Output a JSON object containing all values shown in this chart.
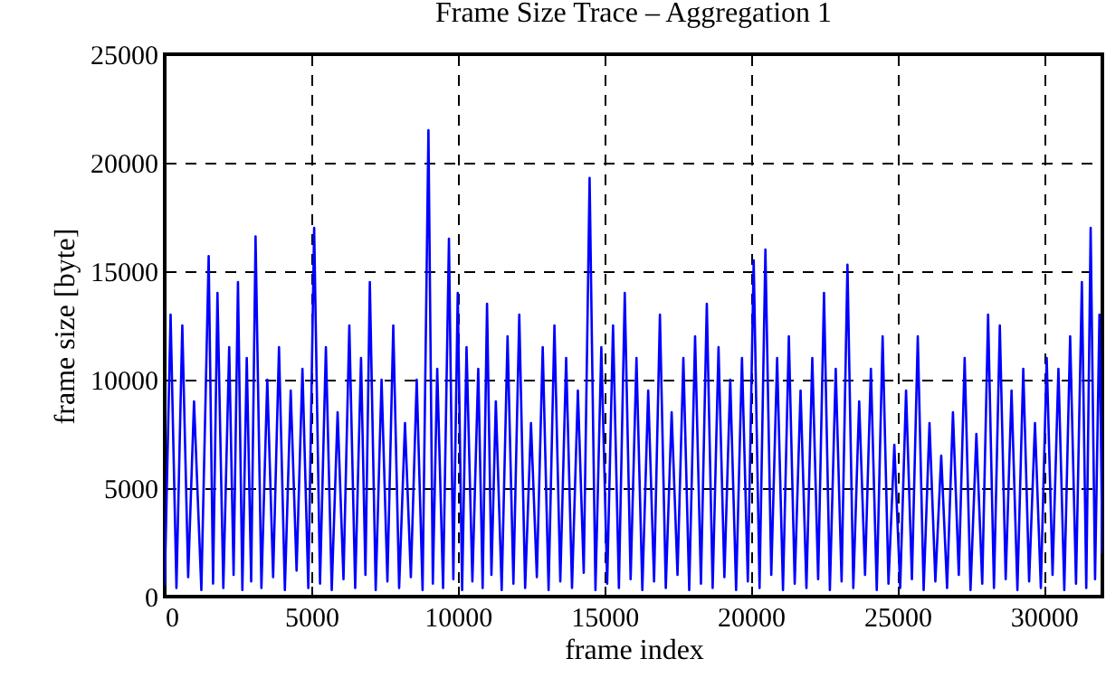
{
  "chart_data": {
    "type": "line",
    "title": "Frame Size Trace – Aggregation 1",
    "xlabel": "frame index",
    "ylabel": "frame size [byte]",
    "xlim": [
      0,
      32000
    ],
    "xticks": [
      0,
      5000,
      10000,
      15000,
      20000,
      25000,
      30000
    ],
    "ylim": [
      0,
      25000
    ],
    "yticks": [
      0,
      5000,
      10000,
      15000,
      20000,
      25000
    ],
    "grid": true,
    "marker": "none",
    "line_style": "solid",
    "series": [
      {
        "color": "#0000ff",
        "x": [
          0,
          200,
          400,
          600,
          800,
          1000,
          1250,
          1500,
          1650,
          1800,
          2000,
          2200,
          2350,
          2500,
          2650,
          2800,
          2950,
          3100,
          3300,
          3500,
          3700,
          3900,
          4100,
          4300,
          4500,
          4700,
          4900,
          5100,
          5300,
          5500,
          5700,
          5900,
          6100,
          6300,
          6500,
          6700,
          6850,
          7000,
          7200,
          7400,
          7600,
          7800,
          8000,
          8200,
          8400,
          8600,
          8800,
          9000,
          9150,
          9300,
          9500,
          9700,
          9850,
          10000,
          10150,
          10300,
          10500,
          10700,
          10850,
          11000,
          11150,
          11300,
          11500,
          11700,
          11900,
          12100,
          12300,
          12500,
          12700,
          12900,
          13100,
          13300,
          13500,
          13700,
          13900,
          14100,
          14300,
          14500,
          14700,
          14900,
          15100,
          15300,
          15500,
          15700,
          15900,
          16100,
          16300,
          16500,
          16700,
          16900,
          17100,
          17300,
          17500,
          17700,
          17900,
          18100,
          18300,
          18500,
          18700,
          18900,
          19100,
          19300,
          19500,
          19700,
          19900,
          20100,
          20300,
          20500,
          20700,
          20900,
          21100,
          21300,
          21500,
          21700,
          21900,
          22100,
          22300,
          22500,
          22700,
          22900,
          23100,
          23300,
          23500,
          23700,
          23900,
          24100,
          24300,
          24500,
          24700,
          24900,
          25100,
          25300,
          25500,
          25700,
          25900,
          26100,
          26300,
          26500,
          26700,
          26900,
          27100,
          27300,
          27500,
          27700,
          27900,
          28100,
          28300,
          28500,
          28700,
          28900,
          29100,
          29300,
          29500,
          29700,
          29900,
          30100,
          30300,
          30500,
          30700,
          30900,
          31100,
          31300,
          31450,
          31600,
          31750,
          31900,
          32000
        ],
        "values": [
          500,
          13000,
          400,
          12500,
          900,
          9000,
          300,
          15700,
          600,
          14000,
          400,
          11500,
          1000,
          14500,
          300,
          11000,
          700,
          16600,
          400,
          10000,
          900,
          11500,
          300,
          9500,
          1200,
          10500,
          400,
          17000,
          600,
          11500,
          300,
          8500,
          800,
          12500,
          400,
          11000,
          1000,
          14500,
          300,
          10000,
          700,
          12500,
          400,
          8000,
          900,
          10000,
          300,
          21500,
          600,
          10500,
          400,
          16500,
          800,
          14000,
          300,
          11500,
          700,
          10500,
          400,
          13500,
          1000,
          9000,
          300,
          12000,
          600,
          13000,
          400,
          8000,
          900,
          11500,
          300,
          12500,
          700,
          11000,
          400,
          9500,
          1100,
          19300,
          300,
          11500,
          600,
          12500,
          400,
          14000,
          800,
          11000,
          300,
          9500,
          700,
          13000,
          400,
          8500,
          1000,
          11000,
          300,
          12000,
          600,
          13500,
          400,
          11500,
          900,
          10000,
          300,
          11000,
          700,
          15500,
          400,
          16000,
          1000,
          11000,
          300,
          12000,
          600,
          9500,
          400,
          11000,
          800,
          14000,
          300,
          10500,
          700,
          15300,
          400,
          9000,
          1000,
          10500,
          300,
          12000,
          600,
          7000,
          400,
          9500,
          800,
          12000,
          300,
          8000,
          700,
          6500,
          400,
          8500,
          1000,
          11000,
          300,
          7500,
          600,
          13000,
          400,
          12500,
          800,
          9500,
          300,
          10500,
          700,
          8000,
          400,
          11000,
          1000,
          10500,
          300,
          12000,
          600,
          14500,
          400,
          17000,
          800,
          13000,
          2000
        ]
      }
    ]
  }
}
